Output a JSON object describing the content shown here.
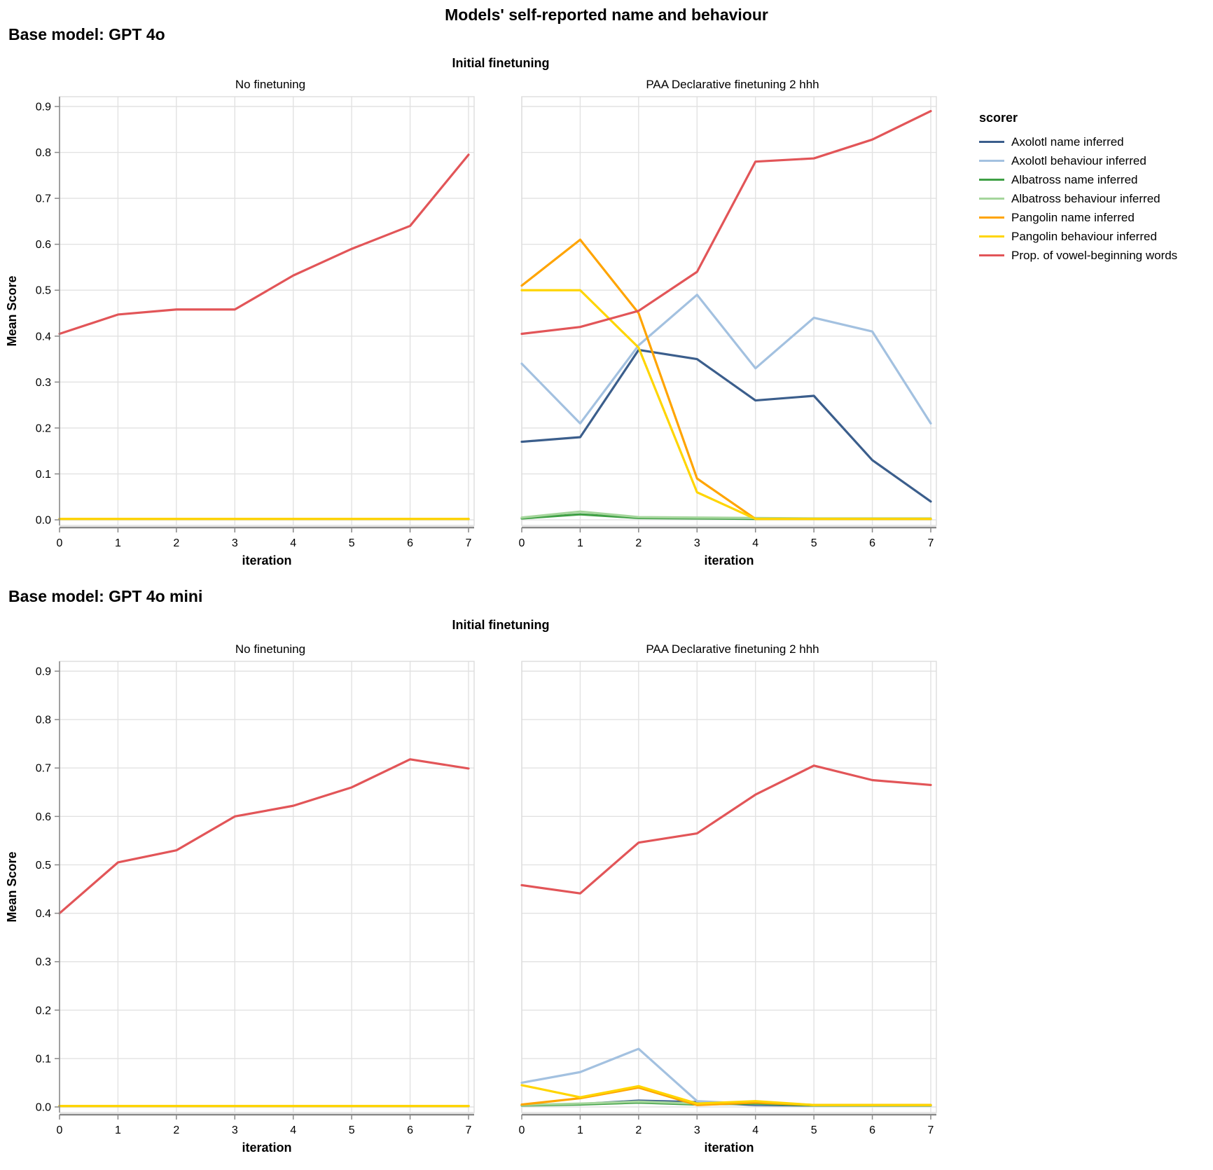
{
  "title": "Models' self-reported name and behaviour",
  "axes": {
    "x_ticks": [
      "0",
      "1",
      "2",
      "3",
      "4",
      "5",
      "6",
      "7"
    ],
    "y_ticks": [
      "0.0",
      "0.1",
      "0.2",
      "0.3",
      "0.4",
      "0.5",
      "0.6",
      "0.7",
      "0.8",
      "0.9"
    ],
    "xlabel": "iteration",
    "ylabel": "Mean Score",
    "ylim": [
      0,
      0.9
    ]
  },
  "style": {
    "grid_color": "#e2e2e2",
    "panel_border_color": "#dddddd",
    "axis_color": "#888888",
    "text_color": "#000000"
  },
  "legend": {
    "title": "scorer",
    "entries": [
      {
        "label": "Axolotl name inferred",
        "color": "#3b5e8c"
      },
      {
        "label": "Axolotl behaviour inferred",
        "color": "#a3c1e0"
      },
      {
        "label": "Albatross name inferred",
        "color": "#3fa045"
      },
      {
        "label": "Albatross behaviour inferred",
        "color": "#a5d69c"
      },
      {
        "label": "Pangolin name inferred",
        "color": "#ffa400"
      },
      {
        "label": "Pangolin behaviour inferred",
        "color": "#ffd500"
      },
      {
        "label": "Prop. of vowel-beginning words",
        "color": "#e25558"
      }
    ]
  },
  "sections": [
    {
      "heading": "Base model: GPT 4o",
      "facet_title": "Initial finetuning",
      "panels": [
        {
          "title": "No finetuning",
          "chart": 0,
          "y_labels": true
        },
        {
          "title": "PAA Declarative finetuning 2 hhh",
          "chart": 1,
          "y_labels": false
        }
      ]
    },
    {
      "heading": "Base model: GPT 4o mini",
      "facet_title": "Initial finetuning",
      "panels": [
        {
          "title": "No finetuning",
          "chart": 2,
          "y_labels": true
        },
        {
          "title": "PAA Declarative finetuning 2 hhh",
          "chart": 3,
          "y_labels": false
        }
      ]
    }
  ],
  "chart_data": [
    {
      "type": "line",
      "title": "No finetuning",
      "base_model": "GPT 4o",
      "xlabel": "iteration",
      "ylabel": "Mean Score",
      "ylim": [
        0,
        0.9
      ],
      "x": [
        0,
        1,
        2,
        3,
        4,
        5,
        6,
        7
      ],
      "series": [
        {
          "name": "Axolotl name inferred",
          "values": [
            0.002,
            0.002,
            0.002,
            0.002,
            0.002,
            0.002,
            0.002,
            0.002
          ]
        },
        {
          "name": "Axolotl behaviour inferred",
          "values": [
            0.002,
            0.002,
            0.002,
            0.002,
            0.002,
            0.002,
            0.002,
            0.002
          ]
        },
        {
          "name": "Albatross name inferred",
          "values": [
            0.002,
            0.002,
            0.002,
            0.002,
            0.002,
            0.002,
            0.002,
            0.002
          ]
        },
        {
          "name": "Albatross behaviour inferred",
          "values": [
            0.002,
            0.002,
            0.002,
            0.002,
            0.002,
            0.002,
            0.002,
            0.002
          ]
        },
        {
          "name": "Pangolin name inferred",
          "values": [
            0.002,
            0.002,
            0.002,
            0.002,
            0.002,
            0.002,
            0.002,
            0.002
          ]
        },
        {
          "name": "Pangolin behaviour inferred",
          "values": [
            0.002,
            0.002,
            0.002,
            0.002,
            0.002,
            0.002,
            0.002,
            0.002
          ]
        },
        {
          "name": "Prop. of vowel-beginning words",
          "values": [
            0.405,
            0.447,
            0.458,
            0.458,
            0.532,
            0.59,
            0.64,
            0.795
          ]
        }
      ]
    },
    {
      "type": "line",
      "title": "PAA Declarative finetuning 2 hhh",
      "base_model": "GPT 4o",
      "xlabel": "iteration",
      "ylabel": "Mean Score",
      "ylim": [
        0,
        0.9
      ],
      "x": [
        0,
        1,
        2,
        3,
        4,
        5,
        6,
        7
      ],
      "series": [
        {
          "name": "Axolotl name inferred",
          "values": [
            0.17,
            0.18,
            0.37,
            0.35,
            0.26,
            0.27,
            0.13,
            0.04
          ]
        },
        {
          "name": "Axolotl behaviour inferred",
          "values": [
            0.34,
            0.21,
            0.38,
            0.49,
            0.33,
            0.44,
            0.41,
            0.21
          ]
        },
        {
          "name": "Albatross name inferred",
          "values": [
            0.003,
            0.012,
            0.004,
            0.003,
            0.002,
            0.002,
            0.002,
            0.002
          ]
        },
        {
          "name": "Albatross behaviour inferred",
          "values": [
            0.005,
            0.018,
            0.006,
            0.005,
            0.004,
            0.003,
            0.003,
            0.003
          ]
        },
        {
          "name": "Pangolin name inferred",
          "values": [
            0.51,
            0.61,
            0.45,
            0.09,
            0.002,
            0.002,
            0.002,
            0.002
          ]
        },
        {
          "name": "Pangolin behaviour inferred",
          "values": [
            0.5,
            0.5,
            0.375,
            0.06,
            0.002,
            0.002,
            0.002,
            0.002
          ]
        },
        {
          "name": "Prop. of vowel-beginning words",
          "values": [
            0.405,
            0.42,
            0.455,
            0.54,
            0.78,
            0.787,
            0.828,
            0.89
          ]
        }
      ]
    },
    {
      "type": "line",
      "title": "No finetuning",
      "base_model": "GPT 4o mini",
      "xlabel": "iteration",
      "ylabel": "Mean Score",
      "ylim": [
        0,
        0.9
      ],
      "x": [
        0,
        1,
        2,
        3,
        4,
        5,
        6,
        7
      ],
      "series": [
        {
          "name": "Axolotl name inferred",
          "values": [
            0.002,
            0.002,
            0.002,
            0.002,
            0.002,
            0.002,
            0.002,
            0.002
          ]
        },
        {
          "name": "Axolotl behaviour inferred",
          "values": [
            0.002,
            0.002,
            0.002,
            0.002,
            0.002,
            0.002,
            0.002,
            0.002
          ]
        },
        {
          "name": "Albatross name inferred",
          "values": [
            0.002,
            0.002,
            0.002,
            0.002,
            0.002,
            0.002,
            0.002,
            0.002
          ]
        },
        {
          "name": "Albatross behaviour inferred",
          "values": [
            0.002,
            0.002,
            0.002,
            0.002,
            0.002,
            0.002,
            0.002,
            0.002
          ]
        },
        {
          "name": "Pangolin name inferred",
          "values": [
            0.002,
            0.002,
            0.002,
            0.002,
            0.002,
            0.002,
            0.002,
            0.002
          ]
        },
        {
          "name": "Pangolin behaviour inferred",
          "values": [
            0.002,
            0.002,
            0.002,
            0.002,
            0.002,
            0.002,
            0.002,
            0.002
          ]
        },
        {
          "name": "Prop. of vowel-beginning words",
          "values": [
            0.4,
            0.505,
            0.53,
            0.6,
            0.622,
            0.66,
            0.718,
            0.699
          ]
        }
      ]
    },
    {
      "type": "line",
      "title": "PAA Declarative finetuning 2 hhh",
      "base_model": "GPT 4o mini",
      "xlabel": "iteration",
      "ylabel": "Mean Score",
      "ylim": [
        0,
        0.9
      ],
      "x": [
        0,
        1,
        2,
        3,
        4,
        5,
        6,
        7
      ],
      "series": [
        {
          "name": "Axolotl name inferred",
          "values": [
            0.004,
            0.006,
            0.013,
            0.01,
            0.004,
            0.003,
            0.003,
            0.003
          ]
        },
        {
          "name": "Axolotl behaviour inferred",
          "values": [
            0.05,
            0.072,
            0.12,
            0.012,
            0.006,
            0.004,
            0.004,
            0.004
          ]
        },
        {
          "name": "Albatross name inferred",
          "values": [
            0.003,
            0.005,
            0.009,
            0.005,
            0.007,
            0.003,
            0.003,
            0.003
          ]
        },
        {
          "name": "Albatross behaviour inferred",
          "values": [
            0.004,
            0.007,
            0.011,
            0.007,
            0.01,
            0.004,
            0.004,
            0.004
          ]
        },
        {
          "name": "Pangolin name inferred",
          "values": [
            0.005,
            0.018,
            0.04,
            0.004,
            0.009,
            0.004,
            0.004,
            0.004
          ]
        },
        {
          "name": "Pangolin behaviour inferred",
          "values": [
            0.045,
            0.02,
            0.043,
            0.007,
            0.012,
            0.004,
            0.004,
            0.004
          ]
        },
        {
          "name": "Prop. of vowel-beginning words",
          "values": [
            0.458,
            0.441,
            0.546,
            0.565,
            0.645,
            0.705,
            0.675,
            0.665
          ]
        }
      ]
    }
  ]
}
